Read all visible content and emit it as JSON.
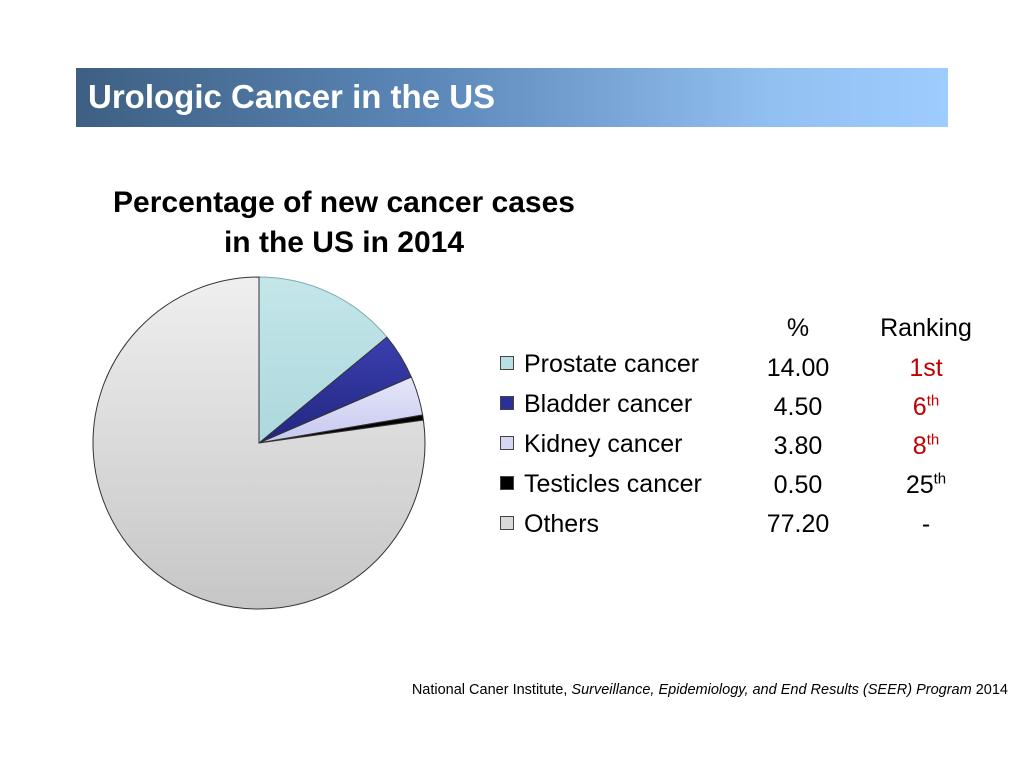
{
  "slide": {
    "title": "Urologic Cancer in the US"
  },
  "table": {
    "header_percent": "%",
    "header_ranking": "Ranking",
    "rows": [
      {
        "percent": "14.00",
        "rank_main": "1st",
        "rank_sup": "",
        "rank_color": "#c00000"
      },
      {
        "percent": "4.50",
        "rank_main": "6",
        "rank_sup": "th",
        "rank_color": "#c00000"
      },
      {
        "percent": "3.80",
        "rank_main": "8",
        "rank_sup": "th",
        "rank_color": "#c00000"
      },
      {
        "percent": "0.50",
        "rank_main": "25",
        "rank_sup": "th",
        "rank_color": "#000000"
      },
      {
        "percent": "77.20",
        "rank_main": "-",
        "rank_sup": "",
        "rank_color": "#000000"
      }
    ]
  },
  "source": {
    "prefix": "National Caner Institute, ",
    "italic": "Surveillance, Epidemiology, and End Results (SEER) Program",
    "suffix": " 2014"
  },
  "chart_data": {
    "type": "pie",
    "title": "Percentage of new cancer cases in the US in 2014",
    "title_line1": "Percentage of new cancer cases",
    "title_line2": "in the US in 2014",
    "legend_position": "right",
    "slices": [
      {
        "label": "Prostate cancer",
        "value": 14.0,
        "color": "#b8e0e4"
      },
      {
        "label": "Bladder cancer",
        "value": 4.5,
        "color": "#2b2f9a"
      },
      {
        "label": "Kidney cancer",
        "value": 3.8,
        "color": "#d4d6f4"
      },
      {
        "label": "Testicles cancer",
        "value": 0.5,
        "color": "#000000"
      },
      {
        "label": "Others",
        "value": 77.2,
        "color": "#d9d9d9"
      }
    ]
  }
}
